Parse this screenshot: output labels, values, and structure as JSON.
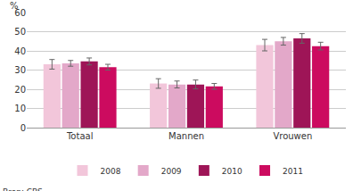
{
  "chart_data": {
    "type": "bar",
    "ylabel": "%",
    "annotations": [
      "Bron: CBS"
    ],
    "categories": [
      "Totaal",
      "Mannen",
      "Vrouwen"
    ],
    "series": [
      {
        "name": "2008",
        "color": "#f2c6da",
        "values": [
          33,
          23,
          43
        ],
        "errors": [
          2.5,
          2.5,
          3
        ]
      },
      {
        "name": "2009",
        "color": "#e3a8c9",
        "values": [
          33.5,
          22.5,
          45
        ],
        "errors": [
          1.5,
          1.8,
          2
        ]
      },
      {
        "name": "2010",
        "color": "#9e1557",
        "values": [
          34.5,
          22.5,
          46.5
        ],
        "errors": [
          1.8,
          2.3,
          2.5
        ]
      },
      {
        "name": "2011",
        "color": "#cc0b5f",
        "values": [
          31.5,
          21.5,
          42.5
        ],
        "errors": [
          1.5,
          1.5,
          2
        ]
      }
    ],
    "ylim": [
      0,
      60
    ],
    "yticks": [
      0,
      10,
      20,
      30,
      40,
      50,
      60
    ],
    "grid": true,
    "legend": "bottom"
  }
}
